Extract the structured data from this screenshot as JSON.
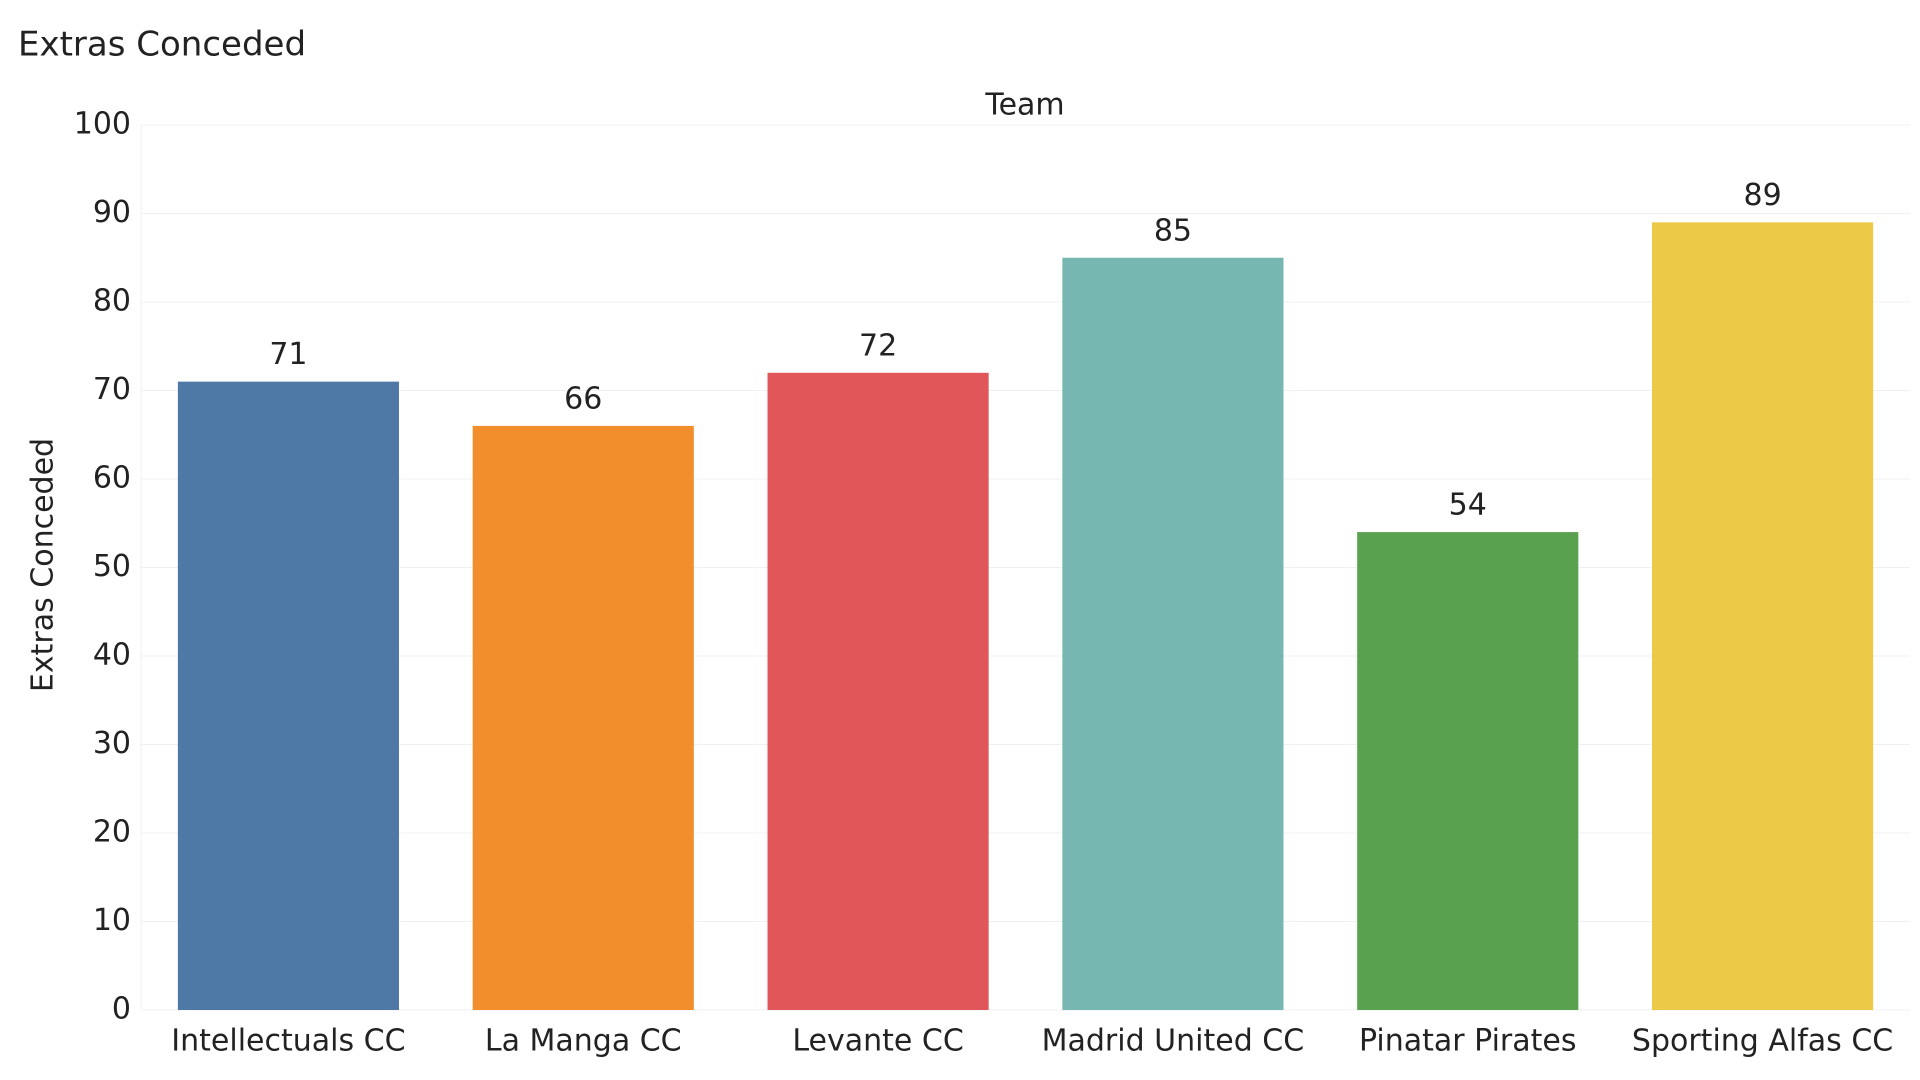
{
  "chart_data": {
    "type": "bar",
    "title": "Extras Conceded",
    "header": "Team",
    "y_label": "Extras Conceded",
    "categories": [
      "Intellectuals CC",
      "La Manga CC",
      "Levante CC",
      "Madrid United CC",
      "Pinatar Pirates",
      "Sporting Alfas CC"
    ],
    "values": [
      71,
      66,
      72,
      85,
      54,
      89
    ],
    "colors": [
      "#4e79a7",
      "#f28e2b",
      "#e15759",
      "#76b7b2",
      "#59a14f",
      "#edc948"
    ],
    "ylim": [
      0,
      100
    ],
    "yticks": [
      0,
      10,
      20,
      30,
      40,
      50,
      60,
      70,
      80,
      90,
      100
    ],
    "grid": true
  }
}
